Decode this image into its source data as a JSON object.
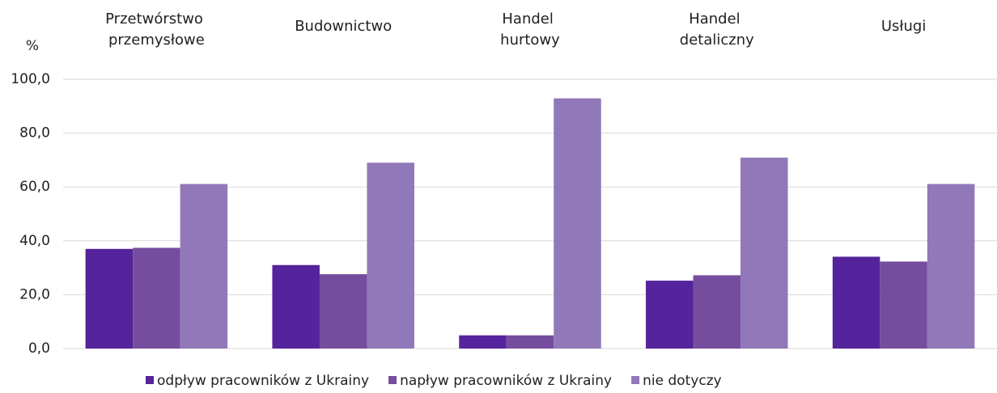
{
  "chart_data": {
    "type": "bar",
    "y_label": "%",
    "categories": [
      "Przetwórstwo przemysłowe",
      "Budownictwo",
      "Handel hurtowy",
      "Handel detaliczny",
      "Usługi"
    ],
    "series": [
      {
        "name": "odpływ pracowników z Ukrainy",
        "color": "#55239b",
        "values": [
          37.0,
          31.0,
          4.9,
          25.2,
          34.1
        ]
      },
      {
        "name": "napływ pracowników z Ukrainy",
        "color": "#764d9e",
        "values": [
          37.4,
          27.6,
          4.9,
          27.2,
          32.3
        ]
      },
      {
        "name": "nie dotyczy",
        "color": "#9178b8",
        "values": [
          61.1,
          69.0,
          92.9,
          70.9,
          61.1
        ]
      }
    ],
    "ylim": [
      0,
      100
    ],
    "yticks": [
      {
        "value": 0,
        "label": "0,0"
      },
      {
        "value": 20,
        "label": "20,0"
      },
      {
        "value": 40,
        "label": "40,0"
      },
      {
        "value": 60,
        "label": "60,0"
      },
      {
        "value": 80,
        "label": "80,0"
      },
      {
        "value": 100,
        "label": "100,0"
      }
    ],
    "grid": true,
    "legend": "bottom"
  }
}
